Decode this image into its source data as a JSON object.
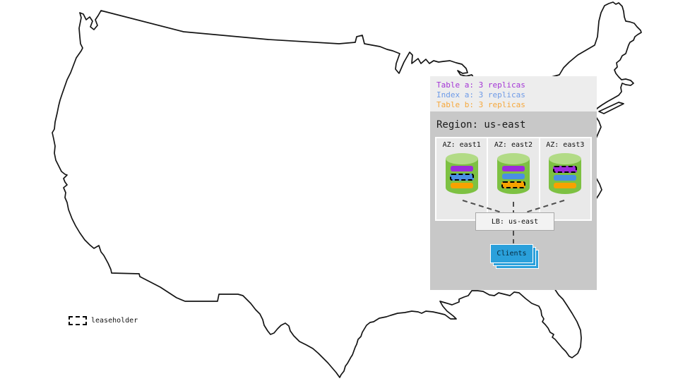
{
  "legend": {
    "items": [
      {
        "label": "Table a: 3 replicas",
        "color": "#a435d6"
      },
      {
        "label": "Index a: 3 replicas",
        "color": "#6e9be8"
      },
      {
        "label": "Table b: 3 replicas",
        "color": "#f6a83c"
      }
    ]
  },
  "region": {
    "title": "Region: us-east",
    "azs": [
      {
        "label": "AZ: east1",
        "replicas": [
          {
            "name": "table-a",
            "color": "#9c2bdb",
            "leaseholder": false
          },
          {
            "name": "index-a",
            "color": "#4a90e2",
            "leaseholder": true
          },
          {
            "name": "table-b",
            "color": "#f7a200",
            "leaseholder": false
          }
        ]
      },
      {
        "label": "AZ: east2",
        "replicas": [
          {
            "name": "table-a",
            "color": "#9c2bdb",
            "leaseholder": false
          },
          {
            "name": "index-a",
            "color": "#4a90e2",
            "leaseholder": false
          },
          {
            "name": "table-b",
            "color": "#f7a200",
            "leaseholder": true
          }
        ]
      },
      {
        "label": "AZ: east3",
        "replicas": [
          {
            "name": "table-a",
            "color": "#9c2bdb",
            "leaseholder": true
          },
          {
            "name": "index-a",
            "color": "#4a90e2",
            "leaseholder": false
          },
          {
            "name": "table-b",
            "color": "#f7a200",
            "leaseholder": false
          }
        ]
      }
    ],
    "lb_label": "LB: us-east",
    "clients_label": "Clients"
  },
  "map_key": {
    "leaseholder_label": "leaseholder"
  },
  "colors": {
    "cylinder_body": "#7dc142",
    "cylinder_top": "#b2db86",
    "clients_blue": "#2aa0db",
    "legend_band_bg": "#ededed",
    "region_bg": "#c8c8c8",
    "az_bg": "#e9e9e9",
    "lb_bg": "#f3f3f3",
    "connector_gray": "#4d4d4d",
    "map_stroke": "#141414"
  }
}
